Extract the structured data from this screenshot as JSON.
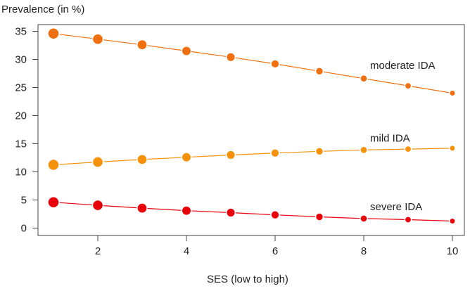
{
  "chart_data": {
    "type": "line",
    "title": "",
    "xlabel": "SES (low to high)",
    "ylabel": "Prevalence (in %)",
    "xlim": [
      0.7,
      10.3
    ],
    "ylim": [
      -1.4,
      36
    ],
    "xticks": [
      2,
      4,
      6,
      8,
      10
    ],
    "yticks": [
      0,
      5,
      10,
      15,
      20,
      25,
      30,
      35
    ],
    "grid": false,
    "x": [
      1,
      2,
      3,
      4,
      5,
      6,
      7,
      8,
      9,
      10
    ],
    "series": [
      {
        "name": "moderate IDA",
        "color": "#f07010",
        "values": [
          34.6,
          33.6,
          32.6,
          31.5,
          30.4,
          29.2,
          27.9,
          26.6,
          25.3,
          24.0
        ]
      },
      {
        "name": "mild IDA",
        "color": "#f5920a",
        "values": [
          11.25,
          11.75,
          12.2,
          12.6,
          13.0,
          13.35,
          13.65,
          13.9,
          14.05,
          14.2
        ]
      },
      {
        "name": "severe IDA",
        "color": "#e8000b",
        "values": [
          4.6,
          4.05,
          3.55,
          3.1,
          2.75,
          2.35,
          2.0,
          1.7,
          1.5,
          1.25
        ]
      }
    ]
  }
}
